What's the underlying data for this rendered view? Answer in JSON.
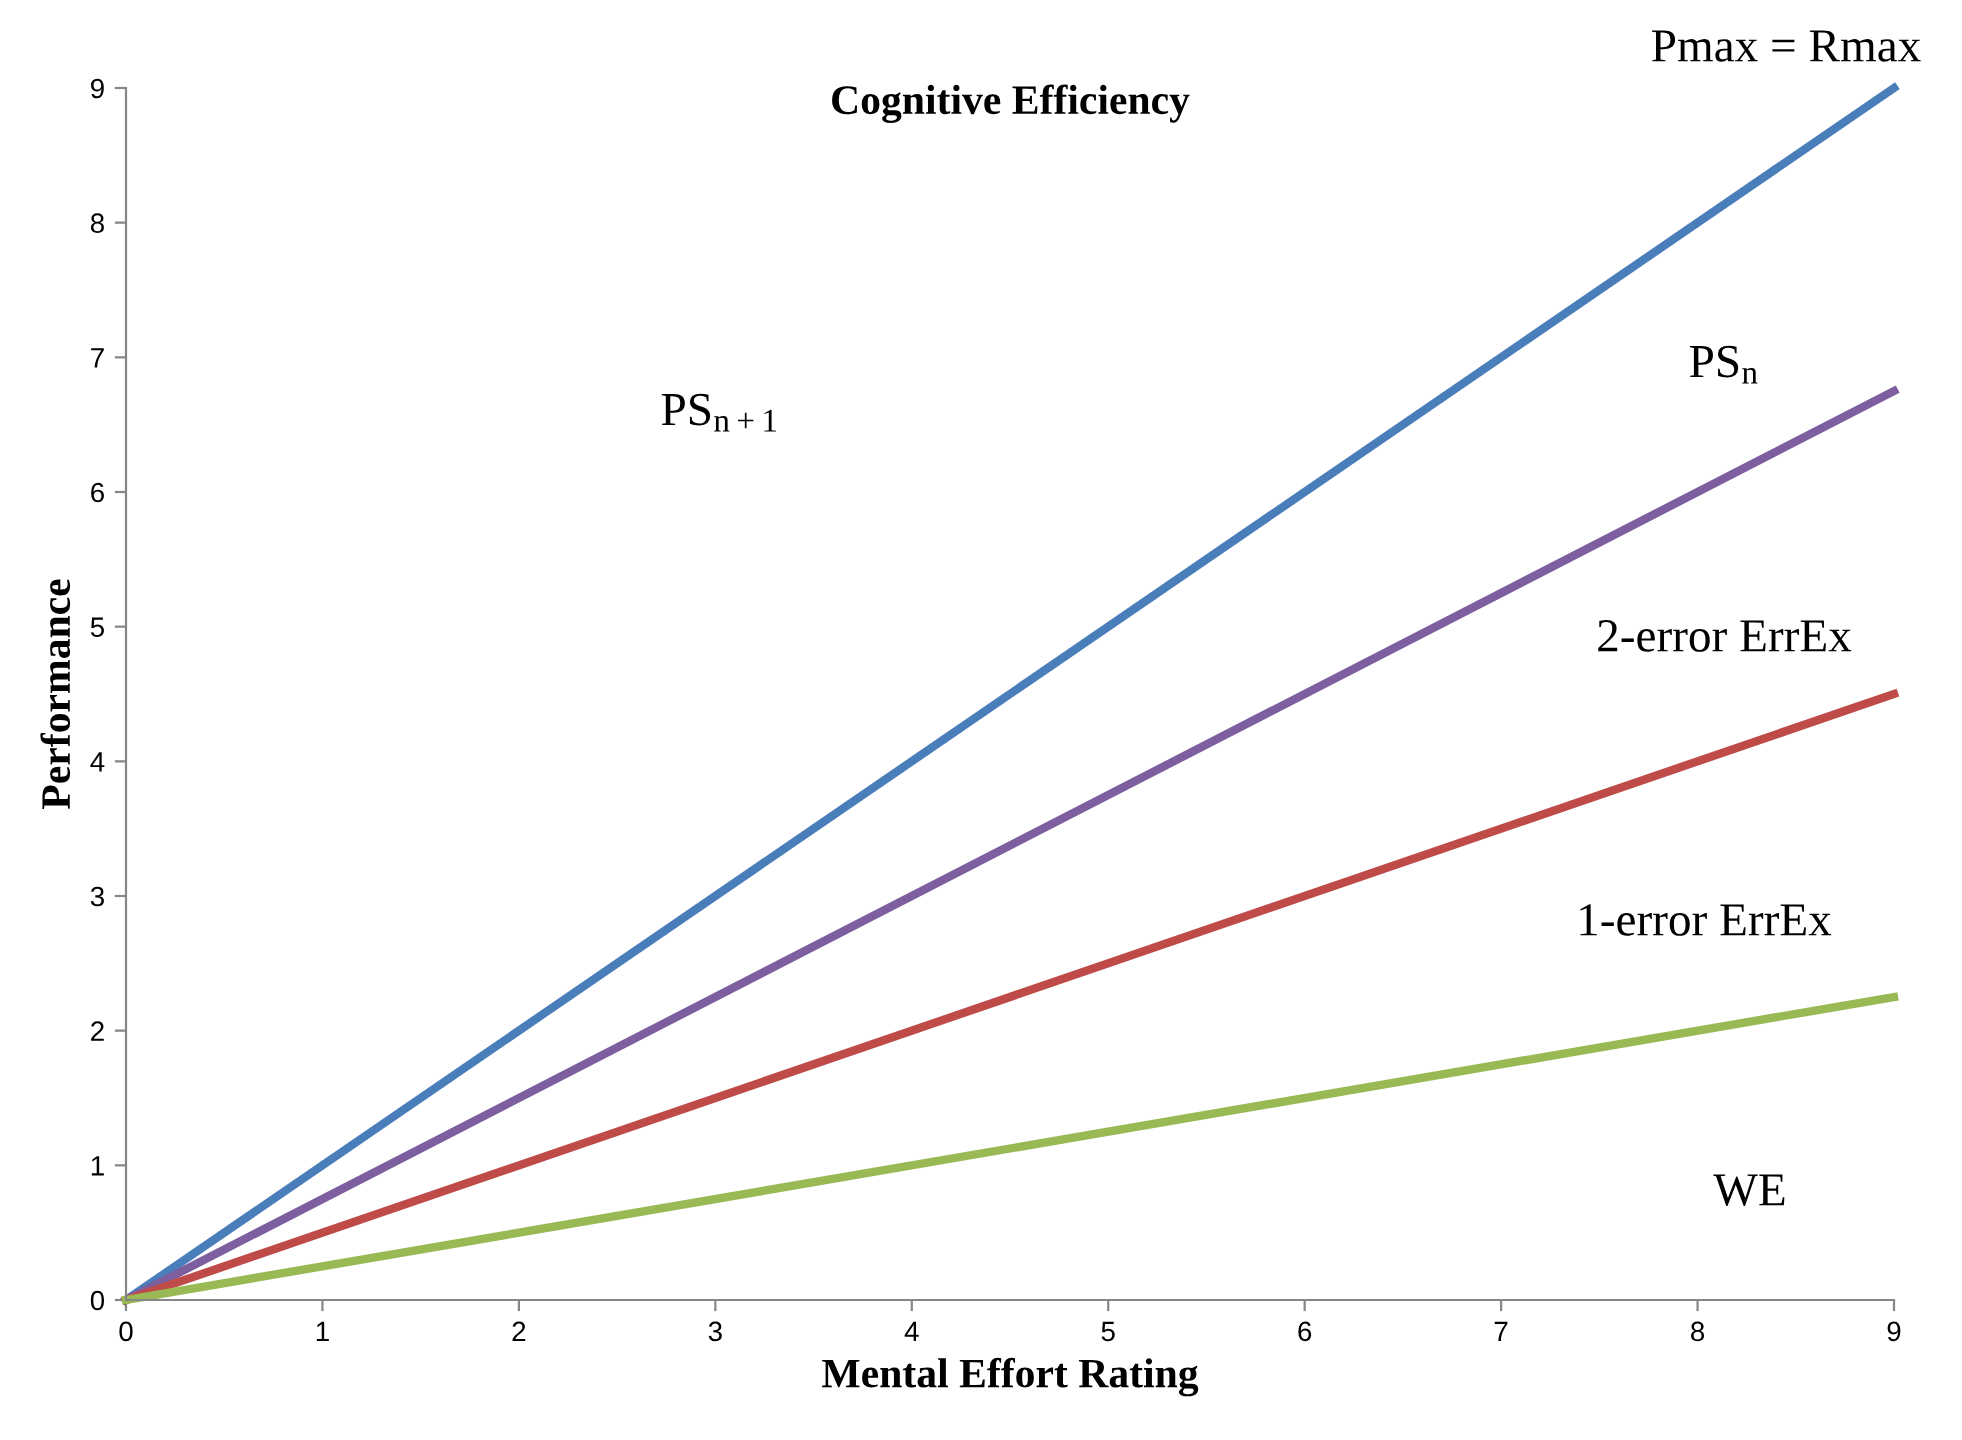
{
  "chart_data": {
    "type": "line",
    "title": "Cognitive Efficiency",
    "xlabel": "Mental Effort Rating",
    "ylabel": "Performance",
    "x": [
      0,
      9
    ],
    "series": [
      {
        "color": "#4a7ebb",
        "values": [
          0,
          9
        ]
      },
      {
        "color": "#7d5fa0",
        "values": [
          0,
          6.75
        ]
      },
      {
        "color": "#be4b48",
        "values": [
          0,
          4.5
        ]
      },
      {
        "color": "#98b954",
        "values": [
          0,
          2.25
        ]
      }
    ],
    "annotations": [
      "Pmax = Rmax",
      "PS$_{n+1}$",
      "PS$_{n}$",
      "2-error ErrEx",
      "1-error ErrEx",
      "WE"
    ],
    "xlim": [
      0,
      9
    ],
    "ylim": [
      0,
      9
    ],
    "xticks": [
      0,
      1,
      2,
      3,
      4,
      5,
      6,
      7,
      8,
      9
    ],
    "yticks": [
      0,
      1,
      2,
      3,
      4,
      5,
      6,
      7,
      8,
      9
    ],
    "grid": false,
    "legend": false,
    "marker": "none",
    "line_style": "solid"
  }
}
